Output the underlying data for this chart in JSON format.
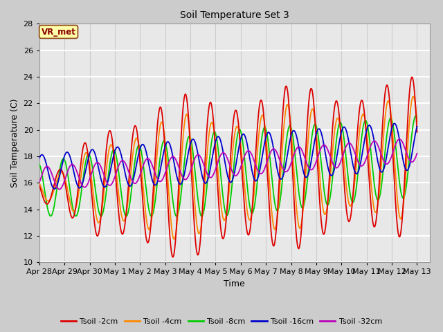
{
  "title": "Soil Temperature Set 3",
  "xlabel": "Time",
  "ylabel": "Soil Temperature (C)",
  "ylim": [
    10,
    28
  ],
  "xlim_days": 15.5,
  "annotation": "VR_met",
  "series_colors": [
    "#dd0000",
    "#ff8800",
    "#00cc00",
    "#0000cc",
    "#bb00bb"
  ],
  "series_labels": [
    "Tsoil -2cm",
    "Tsoil -4cm",
    "Tsoil -8cm",
    "Tsoil -16cm",
    "Tsoil -32cm"
  ],
  "tick_labels": [
    "Apr 28",
    "Apr 29",
    "Apr 30",
    "May 1",
    "May 2",
    "May 3",
    "May 4",
    "May 5",
    "May 6",
    "May 7",
    "May 8",
    "May 9",
    "May 10",
    "May 11",
    "May 12",
    "May 13"
  ],
  "tick_positions": [
    0,
    1,
    2,
    3,
    4,
    5,
    6,
    7,
    8,
    9,
    10,
    11,
    12,
    13,
    14,
    15
  ],
  "yticks": [
    10,
    12,
    14,
    16,
    18,
    20,
    22,
    24,
    26,
    28
  ],
  "figsize": [
    6.4,
    4.8
  ],
  "dpi": 100
}
